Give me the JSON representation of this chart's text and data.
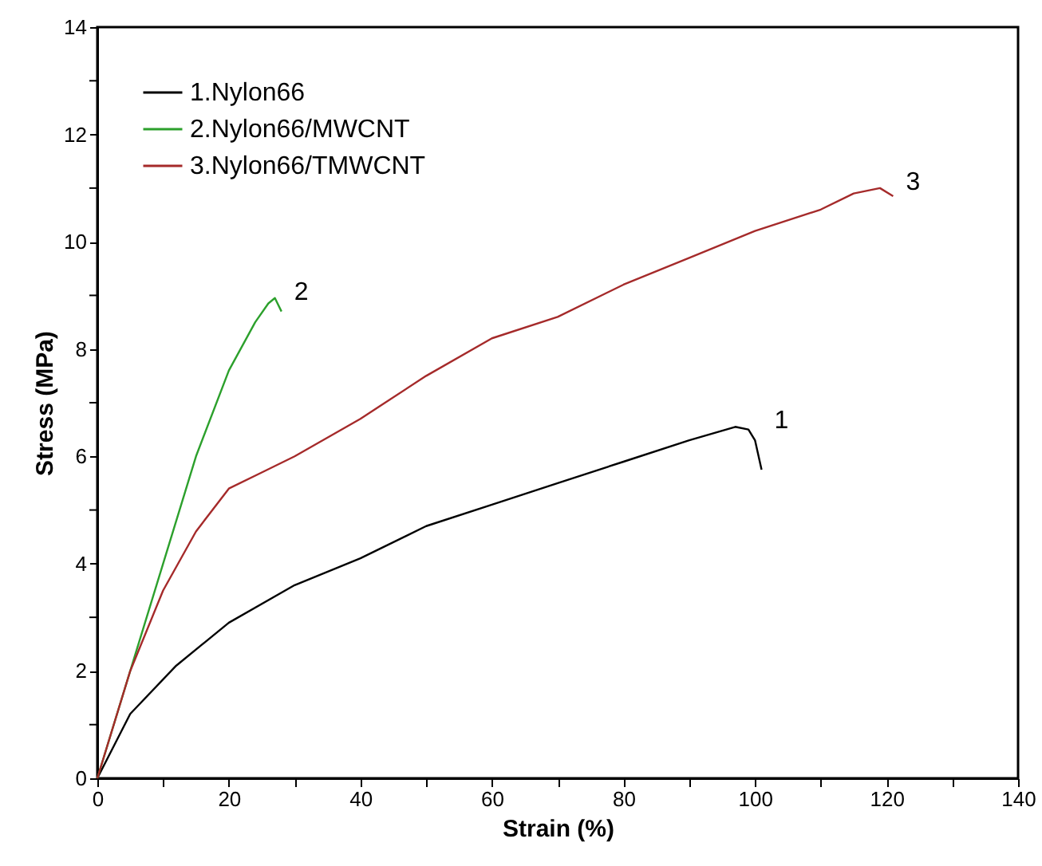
{
  "chart_data": {
    "type": "line",
    "xlabel": "Strain (%)",
    "ylabel": "Stress (MPa)",
    "xlim": [
      0,
      140
    ],
    "ylim": [
      0,
      14
    ],
    "xticks": [
      0,
      {
        "value": 10,
        "label": null
      },
      20,
      {
        "value": 30,
        "label": null
      },
      40,
      {
        "value": 50,
        "label": null
      },
      60,
      {
        "value": 70,
        "label": null
      },
      80,
      {
        "value": 90,
        "label": null
      },
      100,
      {
        "value": 110,
        "label": null
      },
      120,
      {
        "value": 130,
        "label": null
      },
      140
    ],
    "yticks": [
      0,
      {
        "value": 1,
        "label": null
      },
      2,
      {
        "value": 3,
        "label": null
      },
      4,
      {
        "value": 5,
        "label": null
      },
      6,
      {
        "value": 7,
        "label": null
      },
      8,
      {
        "value": 9,
        "label": null
      },
      10,
      {
        "value": 11,
        "label": null
      },
      12,
      {
        "value": 13,
        "label": null
      },
      14
    ],
    "grid": false,
    "legend": "top left",
    "marker": "none",
    "line_style": "solid",
    "series": [
      {
        "name": "1.Nylon66",
        "color": "#000000",
        "x": [
          0,
          5,
          12,
          20,
          30,
          40,
          50,
          60,
          70,
          80,
          90,
          97,
          99,
          100,
          101
        ],
        "values": [
          0,
          1.2,
          2.1,
          2.9,
          3.6,
          4.1,
          4.7,
          5.1,
          5.5,
          5.9,
          6.3,
          6.55,
          6.5,
          6.3,
          5.75
        ]
      },
      {
        "name": "2.Nylon66/MWCNT",
        "color": "#2ca02c",
        "x": [
          0,
          5,
          10,
          15,
          20,
          24,
          26,
          27,
          28
        ],
        "values": [
          0,
          2.0,
          4.0,
          6.0,
          7.6,
          8.5,
          8.85,
          8.95,
          8.7
        ]
      },
      {
        "name": "3.Nylon66/TMWCNT",
        "color": "#a52a2a",
        "x": [
          0,
          5,
          10,
          15,
          20,
          25,
          30,
          40,
          50,
          60,
          70,
          80,
          90,
          100,
          110,
          115,
          119,
          121
        ],
        "values": [
          0,
          2.0,
          3.5,
          4.6,
          5.4,
          5.7,
          6.0,
          6.7,
          7.5,
          8.2,
          8.6,
          9.2,
          9.7,
          10.2,
          10.6,
          10.9,
          11.0,
          10.85
        ]
      }
    ],
    "annotations": [
      "1",
      "2",
      "3"
    ]
  }
}
